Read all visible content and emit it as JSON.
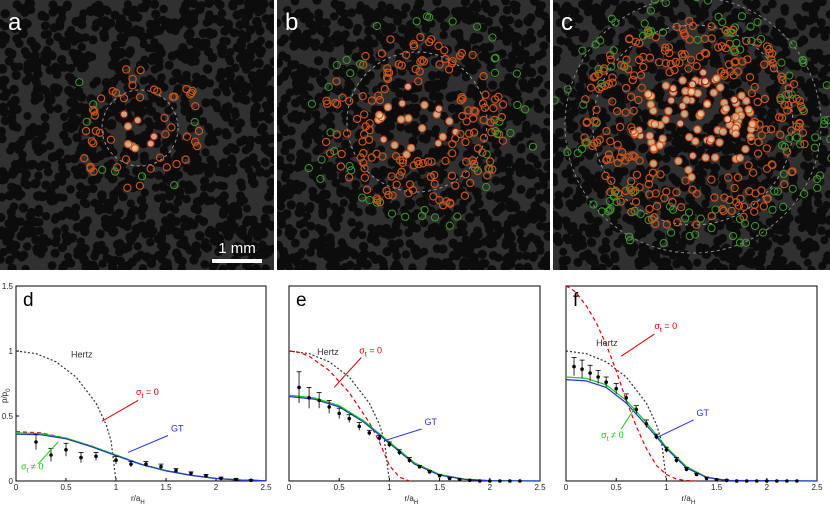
{
  "figure": {
    "panels_top": [
      {
        "id": "a",
        "label": "a",
        "outer_circle": false
      },
      {
        "id": "b",
        "label": "b",
        "outer_circle": false
      },
      {
        "id": "c",
        "label": "c",
        "outer_circle": true
      }
    ],
    "scale_bar": {
      "label": "1 mm"
    },
    "colors": {
      "photo_bg": "#303030",
      "particle": "#0c0c0c",
      "contact_fill": "#f3c9a3",
      "contact_ring": "#c8541c",
      "outer_ring": "#3f9a2c",
      "red_curve": "#e00000",
      "green_curve": "#11cc11",
      "blue_curve": "#2233dd",
      "hertz_curve": "#333333"
    }
  },
  "chart_data": [
    {
      "id": "d",
      "label": "d",
      "type": "line",
      "xlabel": "r/a_H",
      "ylabel": "p/p_0",
      "xlim": [
        0,
        2.5
      ],
      "ylim": [
        0,
        1.5
      ],
      "xticks": [
        "0",
        "0.5",
        "1",
        "1.5",
        "2",
        "2.5"
      ],
      "yticks": [
        "0",
        "0.5",
        "1",
        "1.5"
      ],
      "series": [
        {
          "name": "Hertz",
          "color": "#333333",
          "dash": "2,2",
          "x": [
            0,
            0.2,
            0.4,
            0.6,
            0.8,
            0.9,
            0.95,
            1.0
          ],
          "y": [
            1,
            0.98,
            0.917,
            0.8,
            0.6,
            0.436,
            0.312,
            0
          ]
        },
        {
          "name": "σ_t = 0",
          "color": "#e00000",
          "dash": "4,3",
          "x": [
            0,
            0.25,
            0.5,
            0.75,
            1,
            1.25,
            1.5,
            1.75,
            2,
            2.25,
            2.5
          ],
          "y": [
            0.38,
            0.37,
            0.33,
            0.27,
            0.2,
            0.13,
            0.08,
            0.045,
            0.02,
            0.008,
            0.002
          ]
        },
        {
          "name": "σ_t ≠ 0",
          "color": "#11cc11",
          "dash": "",
          "x": [
            0,
            0.25,
            0.5,
            0.75,
            1,
            1.25,
            1.5,
            1.75,
            2,
            2.25,
            2.5
          ],
          "y": [
            0.37,
            0.365,
            0.33,
            0.27,
            0.2,
            0.13,
            0.08,
            0.045,
            0.02,
            0.008,
            0.002
          ]
        },
        {
          "name": "GT",
          "color": "#2233dd",
          "dash": "",
          "x": [
            0,
            0.25,
            0.5,
            0.75,
            1,
            1.25,
            1.5,
            1.75,
            2,
            2.25,
            2.5
          ],
          "y": [
            0.36,
            0.355,
            0.325,
            0.265,
            0.195,
            0.128,
            0.078,
            0.043,
            0.019,
            0.007,
            0.002
          ]
        }
      ],
      "points": {
        "x": [
          0.2,
          0.35,
          0.5,
          0.65,
          0.8,
          1.0,
          1.15,
          1.3,
          1.45,
          1.6,
          1.75,
          1.9,
          2.05,
          2.2,
          2.35
        ],
        "y": [
          0.3,
          0.2,
          0.24,
          0.18,
          0.19,
          0.16,
          0.13,
          0.13,
          0.11,
          0.08,
          0.06,
          0.04,
          0.02,
          0.01,
          0.005
        ],
        "err": [
          0.06,
          0.05,
          0.05,
          0.04,
          0.03,
          0.03,
          0.02,
          0.02,
          0.02,
          0.015,
          0.01,
          0.01,
          0.01,
          0.01,
          0.005
        ]
      },
      "annotations": [
        {
          "text": "Hertz",
          "x": 0.55,
          "y": 0.95,
          "color": "#333333"
        },
        {
          "text": "σ_t = 0",
          "x": 1.2,
          "y": 0.66,
          "color": "#e00000"
        },
        {
          "text": "GT",
          "x": 1.55,
          "y": 0.38,
          "color": "#2233dd"
        },
        {
          "text": "σ_t ≠ 0",
          "x": 0.05,
          "y": 0.09,
          "color": "#11cc11"
        }
      ],
      "arrows": [
        {
          "from": [
            1.22,
            0.62
          ],
          "to": [
            0.86,
            0.46
          ],
          "color": "#e00000"
        },
        {
          "from": [
            1.52,
            0.35
          ],
          "to": [
            1.12,
            0.22
          ],
          "color": "#2233dd"
        },
        {
          "from": [
            0.22,
            0.13
          ],
          "to": [
            0.42,
            0.3
          ],
          "color": "#11cc11"
        }
      ]
    },
    {
      "id": "e",
      "label": "e",
      "type": "line",
      "xlabel": "r/a_H",
      "ylabel": "",
      "xlim": [
        0,
        2.5
      ],
      "ylim": [
        0,
        1.5
      ],
      "xticks": [
        "0",
        "0.5",
        "1",
        "1.5",
        "2",
        "2.5"
      ],
      "yticks": [],
      "series": [
        {
          "name": "Hertz",
          "color": "#333333",
          "dash": "2,2",
          "x": [
            0,
            0.2,
            0.4,
            0.6,
            0.8,
            0.9,
            0.95,
            1.0
          ],
          "y": [
            1,
            0.98,
            0.917,
            0.8,
            0.6,
            0.436,
            0.312,
            0
          ]
        },
        {
          "name": "σ_t = 0",
          "color": "#e00000",
          "dash": "4,3",
          "x": [
            0,
            0.1,
            0.2,
            0.4,
            0.6,
            0.8,
            0.9,
            1.0,
            1.1,
            1.2
          ],
          "y": [
            1,
            0.99,
            0.96,
            0.85,
            0.68,
            0.45,
            0.3,
            0.12,
            0.03,
            0
          ]
        },
        {
          "name": "σ_t ≠ 0",
          "color": "#11cc11",
          "dash": "",
          "x": [
            0,
            0.25,
            0.5,
            0.75,
            1,
            1.25,
            1.5,
            1.75,
            2,
            2.5
          ],
          "y": [
            0.66,
            0.64,
            0.58,
            0.46,
            0.3,
            0.14,
            0.05,
            0.015,
            0.003,
            0
          ]
        },
        {
          "name": "GT",
          "color": "#2233dd",
          "dash": "",
          "x": [
            0,
            0.25,
            0.5,
            0.75,
            1,
            1.25,
            1.5,
            1.75,
            2,
            2.5
          ],
          "y": [
            0.65,
            0.63,
            0.57,
            0.45,
            0.29,
            0.13,
            0.045,
            0.012,
            0.002,
            0
          ]
        }
      ],
      "points": {
        "x": [
          0.1,
          0.2,
          0.3,
          0.4,
          0.5,
          0.6,
          0.7,
          0.8,
          0.9,
          1.0,
          1.1,
          1.2,
          1.3,
          1.4,
          1.5,
          1.6,
          1.7,
          1.8,
          1.9,
          2.0,
          2.1,
          2.2,
          2.3
        ],
        "y": [
          0.72,
          0.64,
          0.62,
          0.57,
          0.52,
          0.48,
          0.42,
          0.37,
          0.33,
          0.28,
          0.22,
          0.16,
          0.11,
          0.07,
          0.04,
          0.02,
          0.01,
          0.005,
          0,
          0,
          0,
          0,
          0
        ],
        "err": [
          0.12,
          0.08,
          0.06,
          0.05,
          0.04,
          0.03,
          0.03,
          0.02,
          0.02,
          0.02,
          0.02,
          0.02,
          0.01,
          0.01,
          0.01,
          0.005,
          0.005,
          0,
          0,
          0,
          0,
          0,
          0
        ]
      },
      "annotations": [
        {
          "text": "Hertz",
          "x": 0.28,
          "y": 0.97,
          "color": "#333333"
        },
        {
          "text": "σ_t = 0",
          "x": 0.7,
          "y": 0.98,
          "color": "#e00000"
        },
        {
          "text": "GT",
          "x": 1.35,
          "y": 0.43,
          "color": "#2233dd"
        }
      ],
      "arrows": [
        {
          "from": [
            0.72,
            0.95
          ],
          "to": [
            0.45,
            0.72
          ],
          "color": "#e00000"
        },
        {
          "from": [
            1.32,
            0.4
          ],
          "to": [
            0.95,
            0.31
          ],
          "color": "#2233dd"
        }
      ]
    },
    {
      "id": "f",
      "label": "f",
      "type": "line",
      "xlabel": "r/a_H",
      "ylabel": "",
      "xlim": [
        0,
        2.5
      ],
      "ylim": [
        0,
        1.5
      ],
      "xticks": [
        "0",
        "0.5",
        "1",
        "1.5",
        "2",
        "2.5"
      ],
      "yticks": [],
      "series": [
        {
          "name": "Hertz",
          "color": "#333333",
          "dash": "2,2",
          "x": [
            0,
            0.2,
            0.4,
            0.6,
            0.8,
            0.9,
            0.95,
            1.0
          ],
          "y": [
            1,
            0.98,
            0.917,
            0.8,
            0.6,
            0.436,
            0.312,
            0
          ]
        },
        {
          "name": "σ_t = 0",
          "color": "#e00000",
          "dash": "4,3",
          "x": [
            0,
            0.05,
            0.1,
            0.2,
            0.3,
            0.4,
            0.5,
            0.6,
            0.7,
            0.8,
            0.9,
            1.0,
            1.1,
            1.2,
            1.3
          ],
          "y": [
            1.5,
            1.48,
            1.45,
            1.35,
            1.22,
            1.05,
            0.85,
            0.62,
            0.42,
            0.25,
            0.12,
            0.05,
            0.015,
            0.004,
            0
          ]
        },
        {
          "name": "σ_t ≠ 0",
          "color": "#11cc11",
          "dash": "",
          "x": [
            0,
            0.2,
            0.4,
            0.6,
            0.8,
            1.0,
            1.2,
            1.4,
            1.6,
            2.5
          ],
          "y": [
            0.8,
            0.79,
            0.74,
            0.62,
            0.45,
            0.26,
            0.11,
            0.03,
            0.005,
            0
          ]
        },
        {
          "name": "GT",
          "color": "#2233dd",
          "dash": "",
          "x": [
            0,
            0.2,
            0.4,
            0.6,
            0.8,
            1.0,
            1.2,
            1.4,
            1.6,
            2.5
          ],
          "y": [
            0.78,
            0.77,
            0.72,
            0.6,
            0.43,
            0.25,
            0.1,
            0.028,
            0.004,
            0
          ]
        }
      ],
      "points": {
        "x": [
          0.08,
          0.16,
          0.24,
          0.32,
          0.4,
          0.5,
          0.6,
          0.7,
          0.8,
          0.9,
          1.0,
          1.1,
          1.2,
          1.3,
          1.4,
          1.5,
          1.6,
          1.7,
          1.8,
          1.9,
          2.0,
          2.1,
          2.2,
          2.3
        ],
        "y": [
          0.88,
          0.86,
          0.83,
          0.8,
          0.76,
          0.71,
          0.64,
          0.55,
          0.44,
          0.34,
          0.24,
          0.16,
          0.09,
          0.05,
          0.02,
          0.01,
          0.005,
          0,
          0,
          0,
          0,
          0,
          0,
          0
        ],
        "err": [
          0.07,
          0.07,
          0.06,
          0.05,
          0.04,
          0.04,
          0.03,
          0.03,
          0.03,
          0.02,
          0.02,
          0.02,
          0.015,
          0.01,
          0.01,
          0.005,
          0.005,
          0,
          0,
          0,
          0,
          0,
          0,
          0
        ]
      },
      "annotations": [
        {
          "text": "Hertz",
          "x": 0.3,
          "y": 1.04,
          "color": "#333333"
        },
        {
          "text": "σ_t = 0",
          "x": 0.88,
          "y": 1.17,
          "color": "#e00000"
        },
        {
          "text": "GT",
          "x": 1.3,
          "y": 0.5,
          "color": "#2233dd"
        },
        {
          "text": "σ_t ≠ 0",
          "x": 0.35,
          "y": 0.33,
          "color": "#11cc11"
        }
      ],
      "arrows": [
        {
          "from": [
            0.88,
            1.13
          ],
          "to": [
            0.55,
            0.96
          ],
          "color": "#e00000"
        },
        {
          "from": [
            1.27,
            0.47
          ],
          "to": [
            0.92,
            0.34
          ],
          "color": "#2233dd"
        },
        {
          "from": [
            0.55,
            0.4
          ],
          "to": [
            0.7,
            0.58
          ],
          "color": "#11cc11"
        }
      ]
    }
  ]
}
